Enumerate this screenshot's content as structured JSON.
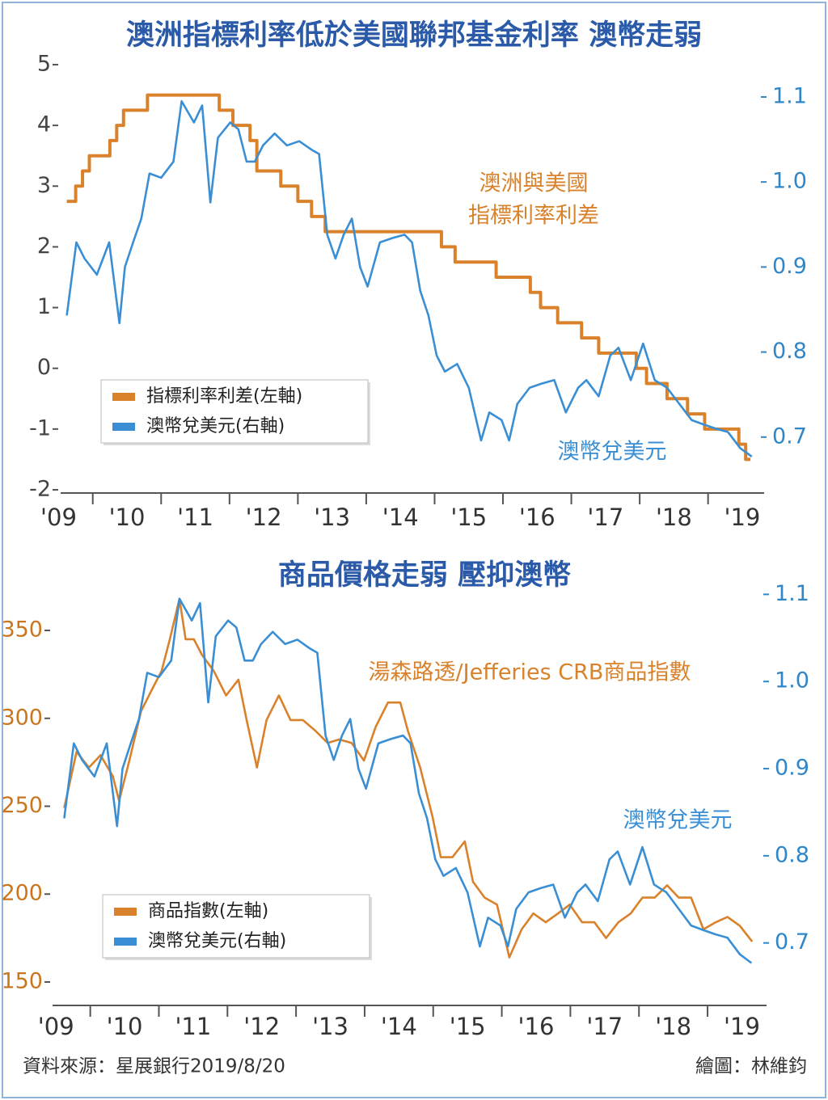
{
  "chart_data": [
    {
      "type": "line",
      "title": "澳洲指標利率低於美國聯邦基金利率 澳幣走弱",
      "annotations": [
        "澳洲與美國",
        "指標利率利差",
        "澳幣兌美元"
      ],
      "xlim": [
        2009.53,
        2019.82
      ],
      "xticks": [
        {
          "value": 2009.5,
          "label": "'09"
        },
        {
          "value": 2010.5,
          "label": "'10"
        },
        {
          "value": 2011.5,
          "label": "'11"
        },
        {
          "value": 2012.5,
          "label": "'12"
        },
        {
          "value": 2013.5,
          "label": "'13"
        },
        {
          "value": 2014.5,
          "label": "'14"
        },
        {
          "value": 2015.5,
          "label": "'15"
        },
        {
          "value": 2016.5,
          "label": "'16"
        },
        {
          "value": 2017.5,
          "label": "'17"
        },
        {
          "value": 2018.5,
          "label": "'18"
        },
        {
          "value": 2019.5,
          "label": "'19"
        }
      ],
      "xminorticks": [
        2010,
        2011,
        2012,
        2013,
        2014,
        2015,
        2016,
        2017,
        2018,
        2019
      ],
      "ylim": [
        -2,
        5
      ],
      "yticks": [
        -2,
        -1,
        0,
        1,
        2,
        3,
        4,
        5
      ],
      "y2lim": [
        0.638,
        1.138
      ],
      "y2ticks": [
        0.7,
        0.8,
        0.9,
        {
          "value": 1,
          "label": "1.0"
        },
        1.1
      ],
      "series": [
        {
          "name": "指標利率利差(左軸)",
          "color": "#d9822b",
          "step": true,
          "x": [
            2009.62,
            2009.75,
            2009.85,
            2009.95,
            2010.25,
            2010.35,
            2010.45,
            2010.8,
            2011.85,
            2012.05,
            2012.3,
            2012.4,
            2012.75,
            2013.0,
            2013.2,
            2013.4,
            2015.1,
            2015.3,
            2015.9,
            2016.4,
            2016.55,
            2016.8,
            2017.15,
            2017.4,
            2017.95,
            2018.1,
            2018.4,
            2018.7,
            2018.95,
            2019.45,
            2019.55,
            2019.62
          ],
          "values": [
            2.75,
            3.0,
            3.25,
            3.5,
            3.75,
            4.0,
            4.25,
            4.5,
            4.25,
            4.0,
            3.75,
            3.25,
            3.0,
            2.75,
            2.5,
            2.25,
            2.0,
            1.75,
            1.5,
            1.25,
            1.0,
            0.75,
            0.5,
            0.25,
            0.0,
            -0.25,
            -0.5,
            -0.75,
            -1.0,
            -1.25,
            -1.5,
            -1.5
          ]
        },
        {
          "name": "澳幣兌美元(右軸)",
          "color": "#3a8fd4",
          "axis": "y2",
          "x": [
            2009.62,
            2009.76,
            2009.88,
            2010.06,
            2010.24,
            2010.39,
            2010.47,
            2010.59,
            2010.71,
            2010.83,
            2011.0,
            2011.18,
            2011.3,
            2011.48,
            2011.6,
            2011.72,
            2011.83,
            2012.01,
            2012.13,
            2012.25,
            2012.37,
            2012.49,
            2012.66,
            2012.84,
            2013.02,
            2013.2,
            2013.31,
            2013.43,
            2013.55,
            2013.67,
            2013.79,
            2013.91,
            2014.02,
            2014.2,
            2014.38,
            2014.56,
            2014.67,
            2014.79,
            2014.91,
            2015.03,
            2015.15,
            2015.33,
            2015.5,
            2015.68,
            2015.8,
            2015.98,
            2016.09,
            2016.21,
            2016.39,
            2016.57,
            2016.75,
            2016.92,
            2017.1,
            2017.22,
            2017.4,
            2017.57,
            2017.69,
            2017.87,
            2018.05,
            2018.22,
            2018.4,
            2018.58,
            2018.76,
            2018.93,
            2019.11,
            2019.29,
            2019.47,
            2019.64
          ],
          "values": [
            0.843,
            0.929,
            0.91,
            0.891,
            0.929,
            0.834,
            0.9,
            0.929,
            0.957,
            1.01,
            1.005,
            1.024,
            1.095,
            1.07,
            1.09,
            0.976,
            1.052,
            1.07,
            1.062,
            1.024,
            1.024,
            1.043,
            1.057,
            1.043,
            1.048,
            1.038,
            1.033,
            0.938,
            0.91,
            0.938,
            0.957,
            0.9,
            0.877,
            0.929,
            0.934,
            0.938,
            0.929,
            0.872,
            0.843,
            0.796,
            0.777,
            0.786,
            0.758,
            0.696,
            0.729,
            0.72,
            0.696,
            0.739,
            0.758,
            0.763,
            0.767,
            0.729,
            0.758,
            0.767,
            0.748,
            0.796,
            0.805,
            0.767,
            0.81,
            0.767,
            0.758,
            0.739,
            0.72,
            0.715,
            0.71,
            0.706,
            0.687,
            0.677
          ]
        }
      ]
    },
    {
      "type": "line",
      "title": "商品價格走弱 壓抑澳幣",
      "annotations": [
        "湯森路透/Jefferies CRB商品指數",
        "澳幣兌美元"
      ],
      "xlim": [
        2009.45,
        2019.86
      ],
      "xticks": [
        {
          "value": 2009.5,
          "label": "'09"
        },
        {
          "value": 2010.5,
          "label": "'10"
        },
        {
          "value": 2011.5,
          "label": "'11"
        },
        {
          "value": 2012.5,
          "label": "'12"
        },
        {
          "value": 2013.5,
          "label": "'13"
        },
        {
          "value": 2014.5,
          "label": "'14"
        },
        {
          "value": 2015.5,
          "label": "'15"
        },
        {
          "value": 2016.5,
          "label": "'16"
        },
        {
          "value": 2017.5,
          "label": "'17"
        },
        {
          "value": 2018.5,
          "label": "'18"
        },
        {
          "value": 2019.5,
          "label": "'19"
        }
      ],
      "xminorticks": [
        2010,
        2011,
        2012,
        2013,
        2014,
        2015,
        2016,
        2017,
        2018,
        2019
      ],
      "ylim": [
        138.5,
        373
      ],
      "yticks": [
        150,
        200,
        250,
        300,
        350
      ],
      "y2lim": [
        0.632,
        1.105
      ],
      "y2ticks": [
        0.7,
        0.8,
        0.9,
        {
          "value": 1,
          "label": "1.0"
        },
        1.1
      ],
      "series": [
        {
          "name": "商品指數(左軸)",
          "color": "#d9822b",
          "x": [
            2009.62,
            2009.8,
            2009.98,
            2010.15,
            2010.33,
            2010.42,
            2010.57,
            2010.74,
            2010.92,
            2011.04,
            2011.16,
            2011.3,
            2011.39,
            2011.51,
            2011.63,
            2011.8,
            2011.98,
            2012.16,
            2012.28,
            2012.43,
            2012.57,
            2012.75,
            2012.92,
            2013.1,
            2013.28,
            2013.46,
            2013.63,
            2013.81,
            2013.99,
            2014.16,
            2014.34,
            2014.52,
            2014.63,
            2014.81,
            2014.99,
            2015.11,
            2015.28,
            2015.46,
            2015.58,
            2015.75,
            2015.93,
            2016.11,
            2016.29,
            2016.46,
            2016.64,
            2016.82,
            2016.99,
            2017.17,
            2017.35,
            2017.52,
            2017.7,
            2017.88,
            2018.05,
            2018.23,
            2018.41,
            2018.58,
            2018.76,
            2018.94,
            2019.12,
            2019.29,
            2019.47,
            2019.65
          ],
          "values": [
            249,
            281,
            272,
            279,
            267,
            253,
            276,
            304,
            318,
            327,
            345,
            368,
            345,
            345,
            336,
            327,
            313,
            322,
            299,
            272,
            299,
            313,
            299,
            299,
            293,
            286,
            288,
            286,
            276,
            295,
            309,
            309,
            293,
            272,
            244,
            221,
            221,
            230,
            207,
            198,
            194,
            164,
            180,
            189,
            184,
            189,
            194,
            184,
            184,
            175,
            184,
            189,
            198,
            198,
            205,
            198,
            198,
            180,
            184,
            187,
            182,
            173
          ]
        },
        {
          "name": "澳幣兌美元(右軸)",
          "color": "#3a8fd4",
          "axis": "y2",
          "x": [
            2009.62,
            2009.76,
            2009.88,
            2010.06,
            2010.24,
            2010.39,
            2010.47,
            2010.59,
            2010.71,
            2010.83,
            2011.0,
            2011.18,
            2011.3,
            2011.48,
            2011.6,
            2011.72,
            2011.83,
            2012.01,
            2012.13,
            2012.25,
            2012.37,
            2012.49,
            2012.66,
            2012.84,
            2013.02,
            2013.2,
            2013.31,
            2013.43,
            2013.55,
            2013.67,
            2013.79,
            2013.91,
            2014.02,
            2014.2,
            2014.38,
            2014.56,
            2014.67,
            2014.79,
            2014.91,
            2015.03,
            2015.15,
            2015.33,
            2015.5,
            2015.68,
            2015.8,
            2015.98,
            2016.09,
            2016.21,
            2016.39,
            2016.57,
            2016.75,
            2016.92,
            2017.1,
            2017.22,
            2017.4,
            2017.57,
            2017.69,
            2017.87,
            2018.05,
            2018.22,
            2018.4,
            2018.58,
            2018.76,
            2018.93,
            2019.11,
            2019.29,
            2019.47,
            2019.64
          ],
          "values": [
            0.843,
            0.929,
            0.91,
            0.891,
            0.929,
            0.834,
            0.9,
            0.929,
            0.957,
            1.01,
            1.005,
            1.024,
            1.095,
            1.07,
            1.09,
            0.976,
            1.052,
            1.07,
            1.062,
            1.024,
            1.024,
            1.043,
            1.057,
            1.043,
            1.048,
            1.038,
            1.033,
            0.938,
            0.91,
            0.938,
            0.957,
            0.9,
            0.877,
            0.929,
            0.934,
            0.938,
            0.929,
            0.872,
            0.843,
            0.796,
            0.777,
            0.786,
            0.758,
            0.696,
            0.729,
            0.72,
            0.696,
            0.739,
            0.758,
            0.763,
            0.767,
            0.729,
            0.758,
            0.767,
            0.748,
            0.796,
            0.805,
            0.767,
            0.81,
            0.767,
            0.758,
            0.739,
            0.72,
            0.715,
            0.71,
            0.706,
            0.687,
            0.677
          ]
        }
      ]
    }
  ],
  "footer": {
    "source": "資料來源：星展銀行2019/8/20",
    "credit": "繪圖：林維鈞"
  }
}
